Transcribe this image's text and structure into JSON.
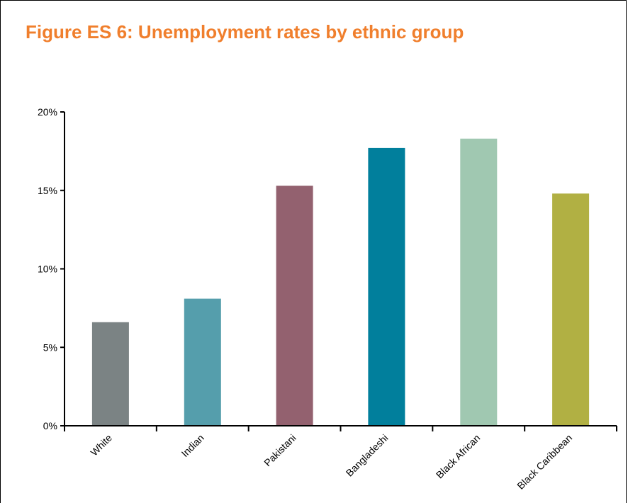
{
  "colors": {
    "title": "#f07f2d",
    "axis": "#000000",
    "bars": [
      "#7b8384",
      "#559eac",
      "#93616f",
      "#017f9c",
      "#a0c8b1",
      "#b1b043"
    ]
  },
  "chart_data": {
    "type": "bar",
    "title": "Figure ES 6: Unemployment rates by ethnic group",
    "xlabel": "",
    "ylabel": "",
    "categories": [
      "White",
      "Indian",
      "Pakistani",
      "Bangladeshi",
      "Black African",
      "Black Caribbean"
    ],
    "values": [
      6.6,
      8.1,
      15.3,
      17.7,
      18.3,
      14.8
    ],
    "ylim": [
      0,
      20
    ],
    "yticks": [
      0,
      5,
      10,
      15,
      20
    ],
    "ytick_labels": [
      "0%",
      "5%",
      "10%",
      "15%",
      "20%"
    ],
    "grid": false,
    "legend": "none"
  }
}
